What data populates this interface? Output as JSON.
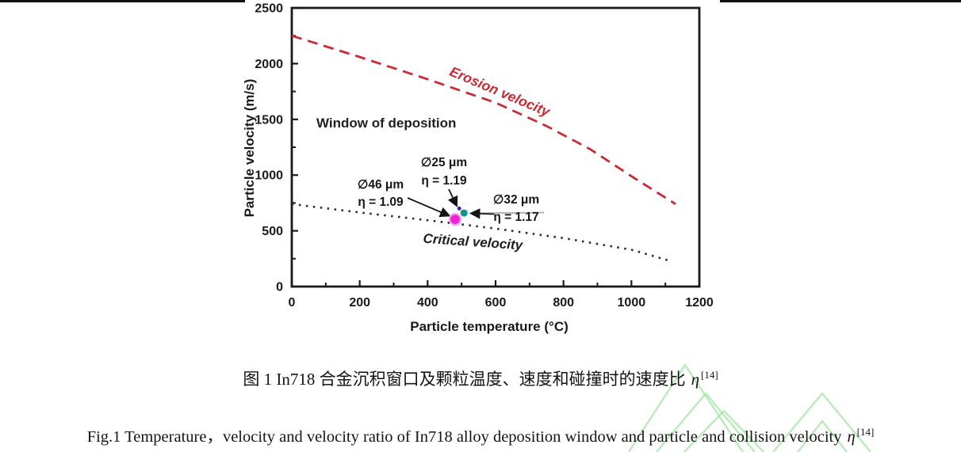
{
  "chart_data": {
    "type": "line",
    "title": "",
    "xlabel": "Particle temperature (°C)",
    "ylabel": "Particle velocity (m/s)",
    "xlim": [
      0,
      1200
    ],
    "ylim": [
      0,
      2500
    ],
    "xticks": [
      0,
      200,
      400,
      600,
      800,
      1000,
      1200
    ],
    "xtick_minor_step": 100,
    "yticks": [
      0,
      500,
      1000,
      1500,
      2000,
      2500
    ],
    "ytick_minor_step": 250,
    "grid": false,
    "legend": "none",
    "series": [
      {
        "name": "Erosion velocity",
        "style": "dashed",
        "color": "#c92a34",
        "points": [
          [
            0,
            2250
          ],
          [
            200,
            2060
          ],
          [
            400,
            1860
          ],
          [
            600,
            1650
          ],
          [
            750,
            1440
          ],
          [
            880,
            1230
          ],
          [
            1000,
            990
          ],
          [
            1130,
            740
          ]
        ]
      },
      {
        "name": "Critical velocity",
        "style": "dotted",
        "color": "#2b2b2b",
        "points": [
          [
            0,
            740
          ],
          [
            200,
            665
          ],
          [
            400,
            595
          ],
          [
            600,
            520
          ],
          [
            800,
            435
          ],
          [
            1000,
            330
          ],
          [
            1120,
            225
          ]
        ]
      }
    ],
    "curve_labels": [
      {
        "text": "Window of deposition",
        "color": "#1f1f1f",
        "x": 399,
        "y": 161,
        "rotate": 0,
        "anchor": "start",
        "size": 17
      },
      {
        "text": "Erosion velocity",
        "color": "#c92a34",
        "x": 628,
        "y": 121,
        "rotate": 23,
        "anchor": "middle",
        "size": 17.5
      },
      {
        "text": "Critical velocity",
        "color": "#1f1f1f",
        "x": 596,
        "y": 311,
        "rotate": 4,
        "anchor": "middle",
        "size": 17
      }
    ],
    "points": [
      {
        "size_label": "∅46 μm",
        "eta_label": "η = 1.09",
        "temp": 481,
        "velocity": 603,
        "eta": 1.09,
        "color": "#ee22d8",
        "halo": "#f6a6e8",
        "r": 7,
        "label_x": 480,
        "label_y1": 238,
        "label_y2": 260,
        "arrow": [
          514,
          250,
          566.5,
          272.5
        ]
      },
      {
        "size_label": "∅25 μm",
        "eta_label": "η = 1.19",
        "temp": 493,
        "velocity": 700,
        "eta": 1.19,
        "color": "#2a2ab0",
        "halo": null,
        "r": 2.5,
        "label_x": 560,
        "label_y1": 210,
        "label_y2": 233,
        "arrow": [
          566,
          239,
          576,
          260
        ]
      },
      {
        "size_label": "∅32 μm",
        "eta_label": "η = 1.17",
        "temp": 507,
        "velocity": 660,
        "eta": 1.17,
        "color": "#12908a",
        "halo": null,
        "r": 4.5,
        "label_x": 651,
        "label_y1": 257,
        "label_y2": 279,
        "arrow": [
          623,
          270.5,
          594,
          269.5
        ],
        "leader": [
          596,
          269.5,
          686,
          268.5
        ]
      }
    ]
  },
  "captions": {
    "zh": {
      "text": "图 1 In718 合金沉积窗口及颗粒温度、速度和碰撞时的速度比",
      "eta": "η",
      "ref": "[14]"
    },
    "en": {
      "text": "Fig.1 Temperature，velocity and velocity ratio of In718 alloy deposition window and particle and collision velocity",
      "eta": "η",
      "ref": "[14]"
    }
  },
  "watermark": {
    "color": "#9be49b",
    "opacity": 0.75
  },
  "decor": {
    "top_rule_color": "#101010"
  }
}
